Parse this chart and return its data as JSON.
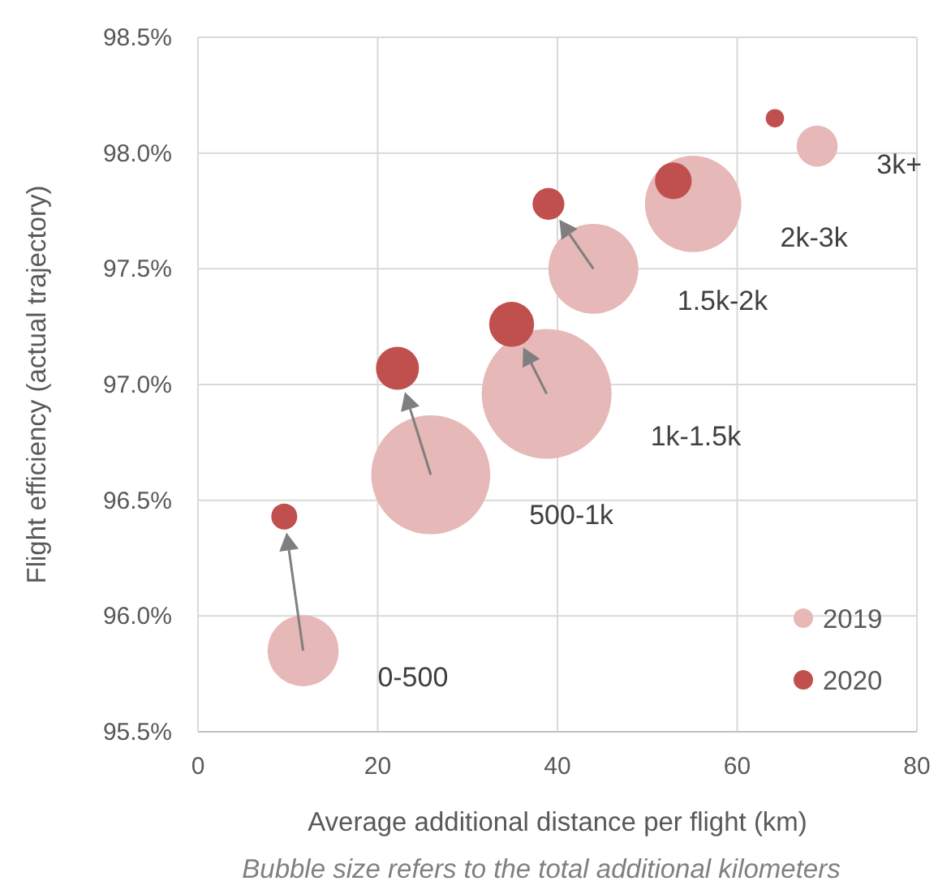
{
  "chart_data": {
    "type": "bubble",
    "xlabel": "Average additional distance per flight (km)",
    "ylabel": "Flight efficiency (actual trajectory)",
    "xlim": [
      0,
      80
    ],
    "xticks": [
      0,
      20,
      40,
      60,
      80
    ],
    "ylim": [
      95.5,
      98.5
    ],
    "yticks": [
      {
        "value": 95.5,
        "label": "95.5%"
      },
      {
        "value": 96.0,
        "label": "96.0%"
      },
      {
        "value": 96.5,
        "label": "96.5%"
      },
      {
        "value": 97.0,
        "label": "97.0%"
      },
      {
        "value": 97.5,
        "label": "97.5%"
      },
      {
        "value": 98.0,
        "label": "98.0%"
      },
      {
        "value": 98.5,
        "label": "98.5%"
      }
    ],
    "grid": true,
    "legend": "bottom right",
    "series": [
      {
        "name": "2019",
        "color": "#e6b8b7",
        "x": [
          11.7,
          25.9,
          38.8,
          44.0,
          55.1,
          68.9
        ],
        "values": [
          95.85,
          96.61,
          96.96,
          97.5,
          97.78,
          98.03
        ],
        "sizes": [
          0.3,
          0.84,
          1,
          0.48,
          0.55,
          0.1
        ]
      },
      {
        "name": "2020",
        "color": "#c0504d",
        "x": [
          9.6,
          22.2,
          34.9,
          39.0,
          52.9,
          64.2
        ],
        "values": [
          96.43,
          97.07,
          97.26,
          97.78,
          97.88,
          98.15
        ],
        "sizes": [
          0.04,
          0.11,
          0.12,
          0.06,
          0.08,
          0.02
        ]
      }
    ],
    "annotations": [
      "0-500",
      "500-1k",
      "1k-1.5k",
      "1.5k-2k",
      "2k-3k",
      "3k+",
      "Bubble size refers to the total additional kilometers"
    ]
  }
}
